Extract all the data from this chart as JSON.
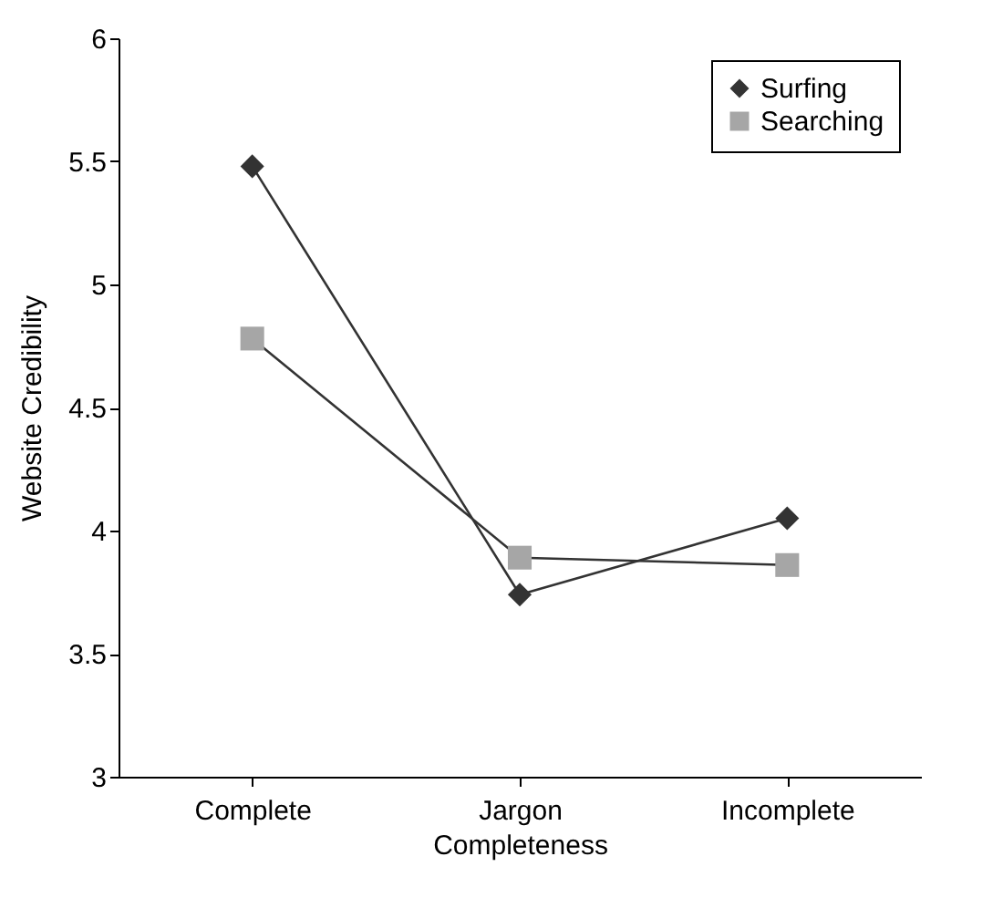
{
  "chart_data": {
    "type": "line",
    "xlabel": "Completeness",
    "ylabel": "Website Credibility",
    "categories": [
      "Complete",
      "Jargon",
      "Incomplete"
    ],
    "series": [
      {
        "name": "Surfing",
        "color": "#333333",
        "marker": "diamond",
        "values": [
          5.48,
          3.74,
          4.05
        ]
      },
      {
        "name": "Searching",
        "color": "#a6a6a6",
        "marker": "square",
        "values": [
          4.78,
          3.89,
          3.86
        ]
      }
    ],
    "ylim": [
      3,
      6
    ],
    "yticks": [
      3,
      3.5,
      4,
      4.5,
      5,
      5.5,
      6
    ],
    "grid": false,
    "legend": "top right"
  }
}
